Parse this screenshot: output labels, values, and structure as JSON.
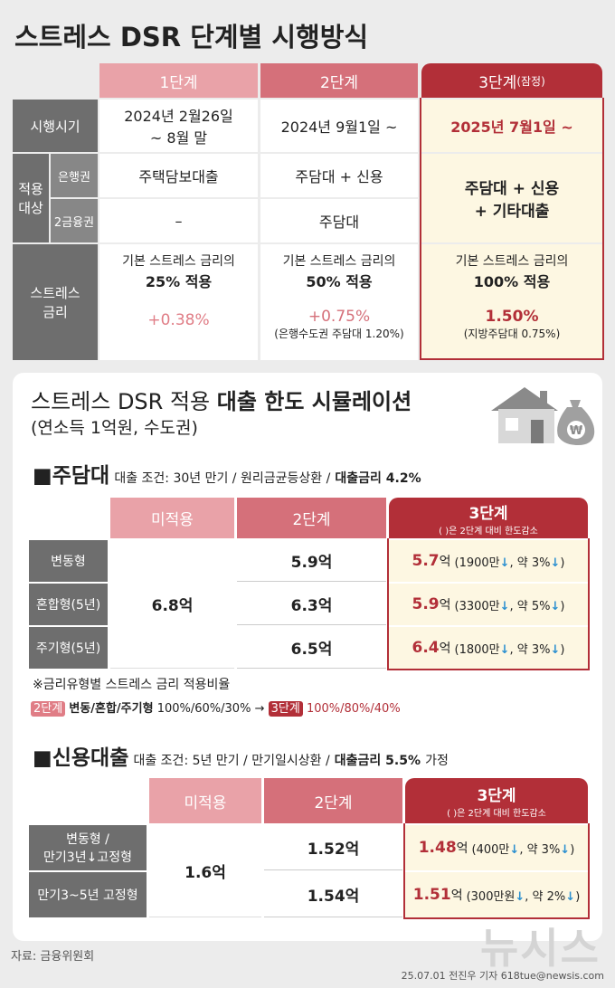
{
  "title": "스트레스 DSR 단계별 시행방식",
  "stages": {
    "headers": [
      "1단계",
      "2단계",
      "3단계"
    ],
    "provisional": "(잠정)",
    "row_labels": {
      "period": "시행시기",
      "target": "적용 대상",
      "bank": "은행권",
      "secondary": "2금융권",
      "rate": "스트레스 금리"
    },
    "period": [
      [
        "2024년 2월26일",
        "~ 8월 말"
      ],
      [
        "2024년 9월1일 ~"
      ],
      [
        "2025년 7월1일 ~"
      ]
    ],
    "bank": [
      "주택담보대출",
      "주담대 + 신용"
    ],
    "secondary": [
      "–",
      "주담대"
    ],
    "stage3_target": [
      "주담대 + 신용",
      "+ 기타대출"
    ],
    "rate": [
      {
        "basis": "기본 스트레스 금리의",
        "share": "25% 적용",
        "add": "+0.38%"
      },
      {
        "basis": "기본 스트레스 금리의",
        "share": "50% 적용",
        "add": "+0.75%",
        "note": "(은행수도권 주담대 1.20%)"
      },
      {
        "basis": "기본 스트레스 금리의",
        "share": "100% 적용",
        "add": "1.50%",
        "note": "(지방주담대 0.75%)"
      }
    ]
  },
  "simulation": {
    "title": "스트레스 DSR 적용",
    "title_bold": "대출 한도 시뮬레이션",
    "subtitle": "(연소득 1억원, 수도권)",
    "mortgage": {
      "name": "■주담대",
      "conditions": "대출 조건: 30년 만기 / 원리금균등상환 /",
      "rate": "대출금리 4.2%",
      "headers": [
        "미적용",
        "2단계",
        "3단계"
      ],
      "header_note": "( )은 2단계 대비 한도감소",
      "rows": [
        [
          "변동형"
        ],
        [
          "혼합형(5년)"
        ],
        [
          "주기형(5년)"
        ]
      ],
      "none": "6.8억",
      "stage2": [
        "5.9억",
        "6.3억",
        "6.5억"
      ],
      "stage3": [
        {
          "value": "5.7",
          "unit": "억",
          "change": "(1900만↓, 약 3%↓)"
        },
        {
          "value": "5.9",
          "unit": "억",
          "change": "(3300만↓, 약 5%↓)"
        },
        {
          "value": "6.4",
          "unit": "억",
          "change": "(1800만↓, 약 3%↓)"
        }
      ]
    },
    "ratio_note": {
      "title": "※금리유형별 스트레스 금리 적용비율",
      "from_stage": "2단계",
      "types": "변동/혼합/주기형",
      "from": "100%/60%/30%",
      "arrow": "→",
      "to_stage": "3단계",
      "to": "100%/80%/40%"
    },
    "credit": {
      "name": "■신용대출",
      "conditions": "대출 조건: 5년 만기 / 만기일시상환 /",
      "rate": "대출금리 5.5%",
      "suffix": "가정",
      "headers": [
        "미적용",
        "2단계",
        "3단계"
      ],
      "header_note": "( )은 2단계 대비 한도감소",
      "rows": [
        [
          "변동형 /",
          "만기3년↓고정형"
        ],
        [
          "만기3~5년 고정형"
        ]
      ],
      "none": "1.6억",
      "stage2": [
        "1.52억",
        "1.54억"
      ],
      "stage3": [
        {
          "value": "1.48",
          "unit": "억",
          "change": "(400만↓, 약 3%↓)"
        },
        {
          "value": "1.51",
          "unit": "억",
          "change": "(300만원↓, 약 2%↓)"
        }
      ]
    }
  },
  "footer": {
    "source": "자료: 금융위원회",
    "credit": "25.07.01 전진우 기자 618tue@newsis.com",
    "watermark": "뉴시스"
  }
}
